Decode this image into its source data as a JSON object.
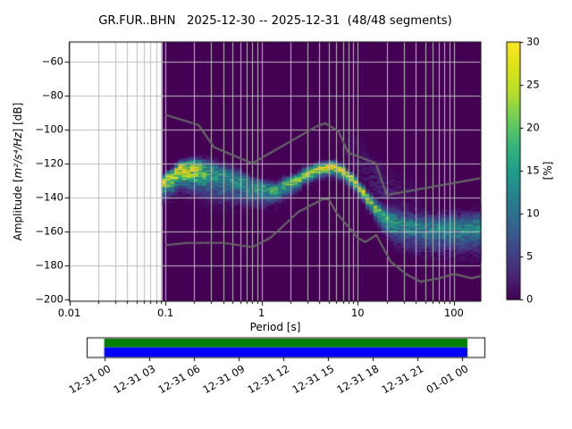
{
  "title": "GR.FUR..BHN   2025-12-30 -- 2025-12-31  (48/48 segments)",
  "station": "GR.FUR..BHN",
  "date_range": "2025-12-30 -- 2025-12-31",
  "segments": "48/48 segments",
  "chart_data": {
    "type": "heatmap",
    "title": "GR.FUR..BHN   2025-12-30 -- 2025-12-31  (48/48 segments)",
    "xlabel": "Period [s]",
    "ylabel_prefix": "Amplitude [",
    "ylabel_math": "m²/s⁴/Hz",
    "ylabel_suffix": "] [dB]",
    "x_scale": "log",
    "xlim": [
      0.01,
      190
    ],
    "ylim": [
      -201,
      -48
    ],
    "grid": true,
    "xticks": [
      "0.01",
      "0.1",
      "1",
      "10",
      "100"
    ],
    "xtick_log_values": [
      -2,
      -1,
      0,
      1,
      2
    ],
    "yticks": [
      "−60",
      "−80",
      "−100",
      "−120",
      "−140",
      "−160",
      "−180",
      "−200"
    ],
    "ytick_values": [
      -60,
      -80,
      -100,
      -120,
      -140,
      -160,
      -180,
      -200
    ],
    "colorbar": {
      "label": "[%]",
      "ticks": [
        "0",
        "5",
        "10",
        "15",
        "20",
        "25",
        "30"
      ],
      "tick_values": [
        0,
        5,
        10,
        15,
        20,
        25,
        30
      ],
      "min": 0,
      "max": 30,
      "colormap": "viridis",
      "stops": [
        [
          0,
          "#440154"
        ],
        [
          0.1,
          "#482878"
        ],
        [
          0.2,
          "#3e4989"
        ],
        [
          0.3,
          "#31688e"
        ],
        [
          0.4,
          "#26828e"
        ],
        [
          0.5,
          "#1f9e89"
        ],
        [
          0.6,
          "#35b779"
        ],
        [
          0.7,
          "#6dcd59"
        ],
        [
          0.8,
          "#b4de2c"
        ],
        [
          0.9,
          "#dde318"
        ],
        [
          1,
          "#fde725"
        ]
      ]
    },
    "histogram": {
      "period_log10_range": [
        -1.032,
        2.28
      ],
      "columns": 80,
      "db_bin": 1,
      "db_range": [
        -200,
        -48
      ],
      "ridge_columns": [
        "log10_period",
        "center_db",
        "peak_percent",
        "sigma_up_db",
        "sigma_down_db"
      ],
      "ridge": [
        [
          -1.03,
          -131.0,
          26,
          2.2,
          5.0
        ],
        [
          -0.85,
          -122.5,
          30,
          2.2,
          6.5
        ],
        [
          -0.7,
          -121.5,
          25,
          2.8,
          8.0
        ],
        [
          -0.52,
          -124.5,
          16,
          3.5,
          9.0
        ],
        [
          -0.3,
          -128.5,
          13,
          4.0,
          8.0
        ],
        [
          -0.05,
          -133.5,
          15,
          3.0,
          6.0
        ],
        [
          0.1,
          -135.5,
          17,
          2.5,
          5.0
        ],
        [
          0.28,
          -131.5,
          19,
          2.2,
          4.0
        ],
        [
          0.45,
          -126.0,
          23,
          2.2,
          3.2
        ],
        [
          0.6,
          -122.5,
          28,
          2.0,
          2.8
        ],
        [
          0.78,
          -121.5,
          29,
          2.0,
          2.8
        ],
        [
          0.93,
          -127.5,
          28,
          1.9,
          2.8
        ],
        [
          1.03,
          -134.5,
          26,
          1.9,
          3.0
        ],
        [
          1.12,
          -141.0,
          24,
          2.2,
          3.5
        ],
        [
          1.25,
          -150.0,
          19,
          2.8,
          4.5
        ],
        [
          1.4,
          -154.5,
          14,
          3.8,
          7.0
        ],
        [
          1.6,
          -156.5,
          12,
          4.2,
          8.0
        ],
        [
          1.8,
          -157.5,
          12,
          4.6,
          8.5
        ],
        [
          2.0,
          -157.0,
          13,
          4.6,
          8.5
        ],
        [
          2.28,
          -156.0,
          13,
          4.6,
          9.0
        ]
      ],
      "haze": {
        "log10_range": [
          0.82,
          1.72
        ],
        "center_log10": 1.25,
        "peak_percent": 3,
        "offset_db": 16,
        "sigma_db": 9
      }
    },
    "noise_models": {
      "color": "#666666",
      "nhnm": [
        [
          -1.0,
          -91.5
        ],
        [
          -0.657,
          -97.4
        ],
        [
          -0.494,
          -110.5
        ],
        [
          -0.097,
          -120.0
        ],
        [
          0.58,
          -98.0
        ],
        [
          0.663,
          -96.5
        ],
        [
          0.799,
          -101.0
        ],
        [
          0.898,
          -113.5
        ],
        [
          1.188,
          -120.0
        ],
        [
          1.301,
          -138.5
        ],
        [
          2.28,
          -128.7
        ]
      ],
      "nlnm": [
        [
          -1.0,
          -168.0
        ],
        [
          -0.77,
          -166.7
        ],
        [
          -0.398,
          -166.7
        ],
        [
          -0.097,
          -169.2
        ],
        [
          0.093,
          -163.7
        ],
        [
          0.38,
          -148.6
        ],
        [
          0.633,
          -141.1
        ],
        [
          0.699,
          -141.1
        ],
        [
          0.778,
          -149.0
        ],
        [
          1.0,
          -163.8
        ],
        [
          1.079,
          -166.2
        ],
        [
          1.193,
          -162.1
        ],
        [
          1.34,
          -177.5
        ],
        [
          1.5,
          -185.0
        ],
        [
          1.653,
          -189.5
        ],
        [
          1.845,
          -187.5
        ],
        [
          2.004,
          -185.0
        ],
        [
          2.188,
          -187.5
        ],
        [
          2.28,
          -186.2
        ]
      ]
    },
    "background_color": "#440154",
    "grid_color": "#bdbdbd"
  },
  "timeline": {
    "tick_labels": [
      "12-31 00",
      "12-31 03",
      "12-31 06",
      "12-31 09",
      "12-31 12",
      "12-31 15",
      "12-31 18",
      "12-31 21",
      "01-01 00"
    ],
    "coverage": {
      "start": -0.001,
      "end": 1.015
    },
    "coverage_top_color": "#008000",
    "coverage_bottom_color": "#0000ff",
    "box_color": "#ffffff",
    "border_color": "#000000"
  }
}
